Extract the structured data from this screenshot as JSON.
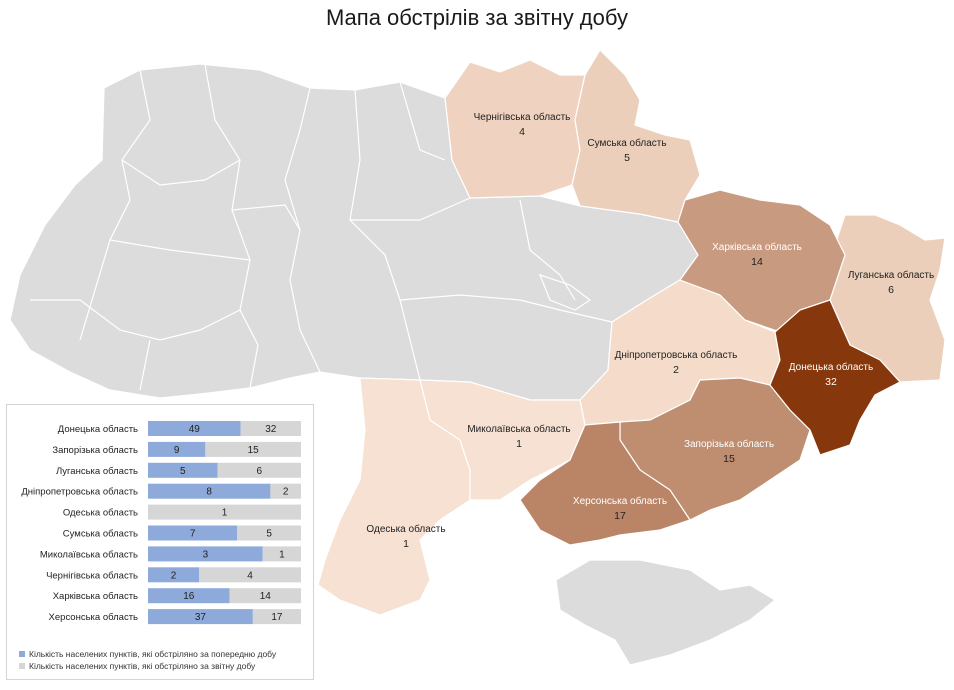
{
  "title": "Мапа обстрілів за звітну добу",
  "colors": {
    "grey_region": "#dcdcdc",
    "scale_low": "#f6e1d3",
    "scale_high": "#86370b",
    "bar_previous": "#8eaadb",
    "bar_current": "#d6d6d6"
  },
  "map": {
    "regions": [
      {
        "name": "Чернігівська область",
        "value": 4
      },
      {
        "name": "Сумська область",
        "value": 5
      },
      {
        "name": "Харківська область",
        "value": 14
      },
      {
        "name": "Луганська область",
        "value": 6
      },
      {
        "name": "Дніпропетровська область",
        "value": 2
      },
      {
        "name": "Донецька область",
        "value": 32
      },
      {
        "name": "Миколаївська область",
        "value": 1
      },
      {
        "name": "Запорізька область",
        "value": 15
      },
      {
        "name": "Херсонська область",
        "value": 17
      },
      {
        "name": "Одеська область",
        "value": 1
      }
    ]
  },
  "chart_data": {
    "type": "bar",
    "orientation": "horizontal",
    "stacked": true,
    "categories": [
      "Донецька область",
      "Запорізька область",
      "Луганська область",
      "Дніпропетровська область",
      "Одеська область",
      "Сумська область",
      "Миколаївська область",
      "Чернігівська область",
      "Харківська область",
      "Херсонська область"
    ],
    "series": [
      {
        "name": "Кількість населених пунктів, які обстріляно за попередню добу",
        "values": [
          49,
          9,
          5,
          8,
          0,
          7,
          3,
          2,
          16,
          37
        ]
      },
      {
        "name": "Кількість населених пунктів, які обстріляно за звітну добу",
        "values": [
          32,
          15,
          6,
          2,
          1,
          5,
          1,
          4,
          14,
          17
        ]
      }
    ],
    "legend_position": "bottom",
    "grid": false
  }
}
